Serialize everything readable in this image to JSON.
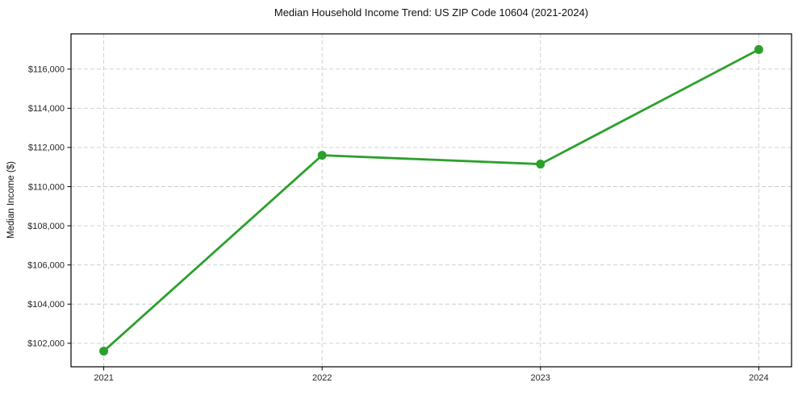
{
  "chart_data": {
    "type": "line",
    "title": "Median Household Income Trend: US ZIP Code 10604 (2021-2024)",
    "ylabel": "Median Income ($)",
    "x": [
      "2021",
      "2022",
      "2023",
      "2024"
    ],
    "values": [
      101600,
      111600,
      111150,
      117000
    ],
    "yticks": [
      102000,
      104000,
      106000,
      108000,
      110000,
      112000,
      114000,
      116000
    ],
    "ytick_labels": [
      "$102,000",
      "$104,000",
      "$106,000",
      "$108,000",
      "$110,000",
      "$112,000",
      "$114,000",
      "$116,000"
    ],
    "ylim": [
      100800,
      117800
    ],
    "grid": true,
    "grid_style": "dashed",
    "grid_color": "#cccccc",
    "line_color": "#2ca02c",
    "marker": "circle",
    "axis_color": "#000000",
    "background": "#ffffff",
    "legend_position": "none"
  }
}
